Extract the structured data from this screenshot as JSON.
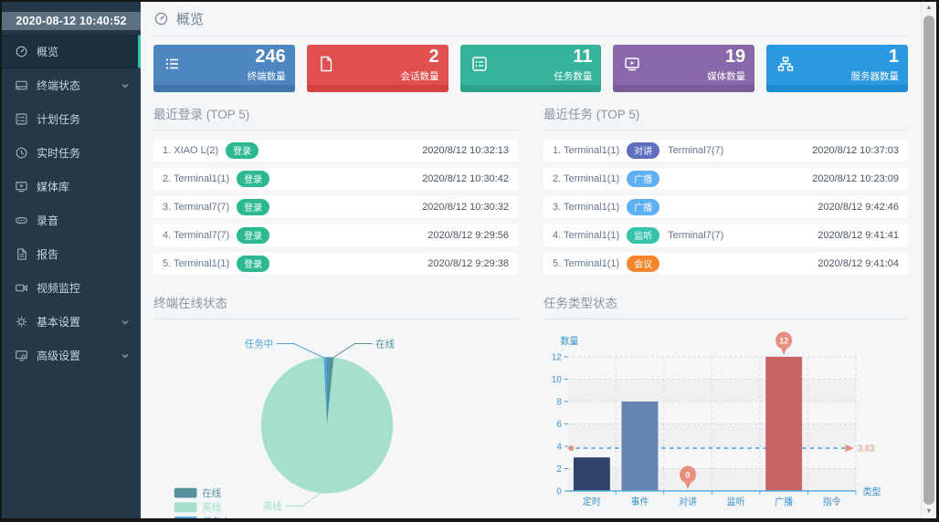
{
  "sidebar": {
    "timestamp": "2020-08-12 10:40:52",
    "items": [
      {
        "key": "overview",
        "label": "概览",
        "icon": "gauge-icon",
        "active": true,
        "expandable": false
      },
      {
        "key": "terminal-status",
        "label": "终端状态",
        "icon": "terminal-status-icon",
        "active": false,
        "expandable": true
      },
      {
        "key": "scheduled-tasks",
        "label": "计划任务",
        "icon": "scheduled-tasks-icon",
        "active": false,
        "expandable": false
      },
      {
        "key": "realtime-tasks",
        "label": "实时任务",
        "icon": "clock-icon",
        "active": false,
        "expandable": false
      },
      {
        "key": "media-library",
        "label": "媒体库",
        "icon": "media-library-icon",
        "active": false,
        "expandable": false
      },
      {
        "key": "recording",
        "label": "录音",
        "icon": "recording-icon",
        "active": false,
        "expandable": false
      },
      {
        "key": "report",
        "label": "报告",
        "icon": "report-icon",
        "active": false,
        "expandable": false
      },
      {
        "key": "video-monitor",
        "label": "视频监控",
        "icon": "video-camera-icon",
        "active": false,
        "expandable": false
      },
      {
        "key": "basic-settings",
        "label": "基本设置",
        "icon": "gear-icon",
        "active": false,
        "expandable": true
      },
      {
        "key": "advanced-settings",
        "label": "高级设置",
        "icon": "advanced-settings-icon",
        "active": false,
        "expandable": true
      }
    ],
    "accent_color": "#2ec4a5"
  },
  "header": {
    "title": "概览"
  },
  "stat_cards": [
    {
      "value": "246",
      "label": "终端数量",
      "icon": "list-icon",
      "color": "#4e86c1",
      "color_dark": "#4176ae"
    },
    {
      "value": "2",
      "label": "会话数量",
      "icon": "document-icon",
      "color": "#e0504e",
      "color_dark": "#d24341"
    },
    {
      "value": "11",
      "label": "任务数量",
      "icon": "checklist-icon",
      "color": "#36b39b",
      "color_dark": "#2da38c"
    },
    {
      "value": "19",
      "label": "媒体数量",
      "icon": "media-icon",
      "color": "#8a67a8",
      "color_dark": "#7d5b9b"
    },
    {
      "value": "1",
      "label": "服务器数量",
      "icon": "sitemap-icon",
      "color": "#2b99e0",
      "color_dark": "#1f8ad2"
    }
  ],
  "recent_logins": {
    "title": "最近登录 (TOP 5)",
    "rows": [
      {
        "name": "1. XIAO L(2)",
        "badge": "登录",
        "badge_color": "#2cb992",
        "time": "2020/8/12 10:32:13"
      },
      {
        "name": "2. Terminal1(1)",
        "badge": "登录",
        "badge_color": "#2cb992",
        "time": "2020/8/12 10:30:42"
      },
      {
        "name": "3. Terminal7(7)",
        "badge": "登录",
        "badge_color": "#2cb992",
        "time": "2020/8/12 10:30:32"
      },
      {
        "name": "4. Terminal7(7)",
        "badge": "登录",
        "badge_color": "#2cb992",
        "time": "2020/8/12 9:29:56"
      },
      {
        "name": "5. Terminal1(1)",
        "badge": "登录",
        "badge_color": "#2cb992",
        "time": "2020/8/12 9:29:38"
      }
    ]
  },
  "recent_tasks": {
    "title": "最近任务 (TOP 5)",
    "rows": [
      {
        "name": "1. Terminal1(1)",
        "badge": "对讲",
        "badge_color": "#5f6fc0",
        "target": "Terminal7(7)",
        "time": "2020/8/12 10:37:03"
      },
      {
        "name": "2. Terminal1(1)",
        "badge": "广播",
        "badge_color": "#5fb0f2",
        "target": "",
        "time": "2020/8/12 10:23:09"
      },
      {
        "name": "3. Terminal1(1)",
        "badge": "广播",
        "badge_color": "#5fb0f2",
        "target": "",
        "time": "2020/8/12 9:42:46"
      },
      {
        "name": "4. Terminal1(1)",
        "badge": "监听",
        "badge_color": "#35c3ac",
        "target": "Terminal7(7)",
        "time": "2020/8/12 9:41:41"
      },
      {
        "name": "5. Terminal1(1)",
        "badge": "会议",
        "badge_color": "#f5862e",
        "target": "",
        "time": "2020/8/12 9:41:04"
      }
    ]
  },
  "chart_data": [
    {
      "type": "pie",
      "title": "终端在线状态",
      "labels": [
        "在线",
        "离线",
        "任务中"
      ],
      "values": [
        4,
        240,
        2
      ],
      "colors": [
        "#55919d",
        "#a5e0cd",
        "#4ea5dc"
      ],
      "legend_position": "bottom-left",
      "legend": [
        "在线",
        "离线",
        "任务中"
      ]
    },
    {
      "type": "bar",
      "title": "任务类型状态",
      "categories": [
        "定时",
        "事件",
        "对讲",
        "监听",
        "广播",
        "指令"
      ],
      "values": [
        3,
        8,
        0,
        0,
        12,
        0
      ],
      "bar_colors": [
        "#2e4468",
        "#6484b2",
        "#6484b2",
        "#6484b2",
        "#c96562",
        "#6484b2"
      ],
      "xlabel": "类型",
      "ylabel": "数量",
      "ylim": [
        0,
        12
      ],
      "yticks": [
        0,
        2,
        4,
        6,
        8,
        10,
        12
      ],
      "grid": true,
      "average_line": 3.83,
      "average_label": "3.83",
      "axis_color": "#4095cf",
      "marker_color": "#e8907f",
      "markers": [
        {
          "category": "对讲",
          "value": 0,
          "label": "0"
        },
        {
          "category": "广播",
          "value": 12,
          "label": "12"
        }
      ]
    }
  ]
}
